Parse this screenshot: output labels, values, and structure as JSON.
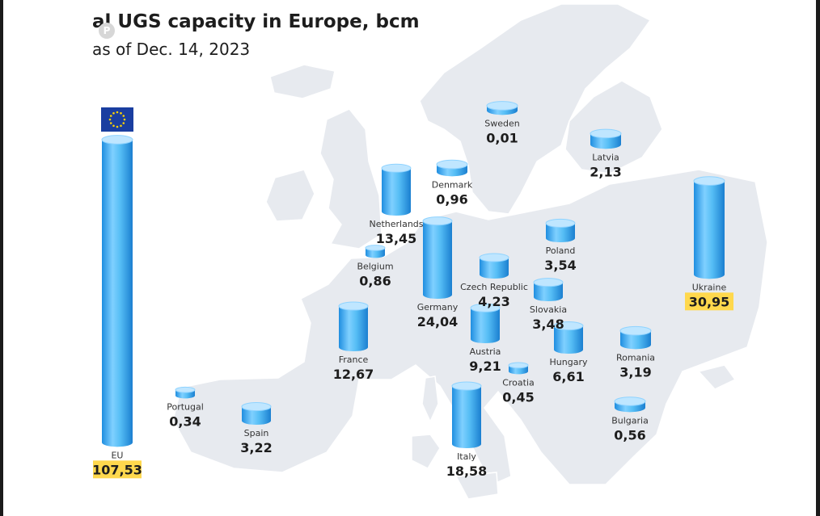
{
  "header": {
    "title": "al UGS capacity in Europe, bcm",
    "subtitle": "as of Dec. 14, 2023"
  },
  "icons": [
    "pinterest-icon",
    "eu-flag-icon"
  ],
  "colors": {
    "cylinder_light": "#bfe6ff",
    "cylinder_mid": "#4fb8f3",
    "cylinder_dark": "#1f8ee0",
    "map_land": "#e7eaef",
    "map_border": "#ffffff",
    "highlight": "#ffd84d"
  },
  "chart_data": {
    "type": "bar",
    "title": "al UGS capacity in Europe, bcm",
    "subtitle": "as of Dec. 14, 2023",
    "categories": [
      "EU",
      "Portugal",
      "Spain",
      "France",
      "Belgium",
      "Netherlands",
      "Denmark",
      "Germany",
      "Sweden",
      "Czech Republic",
      "Austria",
      "Italy",
      "Croatia",
      "Poland",
      "Slovakia",
      "Hungary",
      "Latvia",
      "Romania",
      "Bulgaria",
      "Ukraine"
    ],
    "value_labels": [
      "107,53",
      "0,34",
      "3,22",
      "12,67",
      "0,86",
      "13,45",
      "0,96",
      "24,04",
      "0,01",
      "4,23",
      "9,21",
      "18,58",
      "0,45",
      "3,54",
      "3,48",
      "6,61",
      "2,13",
      "3,19",
      "0,56",
      "30,95"
    ],
    "values": [
      107.53,
      0.34,
      3.22,
      12.67,
      0.86,
      13.45,
      0.96,
      24.04,
      0.01,
      4.23,
      9.21,
      18.58,
      0.45,
      3.54,
      3.48,
      6.61,
      2.13,
      3.19,
      0.56,
      30.95
    ],
    "highlighted": [
      "EU",
      "Ukraine"
    ]
  }
}
